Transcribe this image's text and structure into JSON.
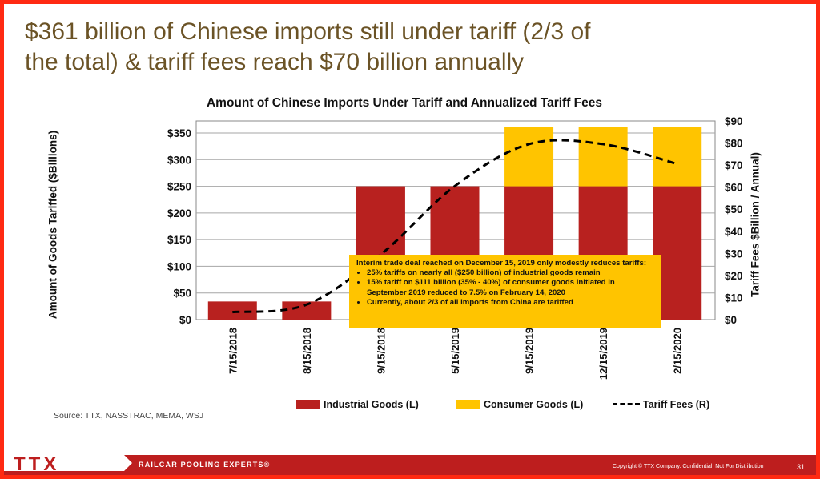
{
  "slide_title": "$361 billion of Chinese imports still under tariff (2/3 of\nthe total) & tariff fees reach $70 billion annually",
  "chart_data": {
    "type": "bar",
    "title": "Amount of Chinese Imports Under Tariff and Annualized Tariff Fees",
    "categories": [
      "7/15/2018",
      "8/15/2018",
      "9/15/2018",
      "5/15/2019",
      "9/15/2019",
      "12/15/2019",
      "2/15/2020"
    ],
    "stacked": true,
    "series": [
      {
        "name": "Industrial Goods (L)",
        "axis": "left",
        "type": "bar",
        "color": "#b8211f",
        "values": [
          34,
          34,
          250,
          250,
          250,
          250,
          250
        ]
      },
      {
        "name": "Consumer Goods (L)",
        "axis": "left",
        "type": "bar",
        "color": "#ffc400",
        "values": [
          0,
          0,
          0,
          0,
          111,
          111,
          111
        ]
      },
      {
        "name": "Tariff Fees (R)",
        "axis": "right",
        "type": "line",
        "style": "dashed",
        "color": "#000000",
        "values": [
          3.4,
          6.8,
          29.5,
          60.5,
          79.5,
          79.5,
          70.5
        ]
      }
    ],
    "y_left": {
      "label": "Amount of Goods Tariffed ($Billions)",
      "ylim": [
        0,
        350
      ],
      "ticks": [
        "$0",
        "$50",
        "$100",
        "$150",
        "$200",
        "$250",
        "$300",
        "$350"
      ]
    },
    "y_right": {
      "label": "Tariff Fees $Billion / Annual)",
      "ylim": [
        0,
        90
      ],
      "ticks": [
        "$0",
        "$10",
        "$20",
        "$30",
        "$40",
        "$50",
        "$60",
        "$70",
        "$80",
        "$90"
      ]
    },
    "grid": true,
    "legend_position": "bottom"
  },
  "annotation": {
    "intro": "Interim trade deal reached on December 15, 2019 only modestly reduces tariffs:",
    "bullets": [
      "25% tariffs on nearly all ($250 billion) of industrial goods remain",
      "15% tariff on $111 billion (35% - 40%) of consumer goods initiated in September 2019 reduced to 7.5% on February 14, 2020",
      "Currently, about 2/3 of all imports from China are tariffed"
    ]
  },
  "source": "Source: TTX, NASSTRAC, MEMA, WSJ",
  "footer": {
    "logo_text": "TTX",
    "tagline": "RAILCAR POOLING EXPERTS",
    "tagline_mark": "®",
    "copyright": "Copyright © TTX Company. Confidential: Not For Distribution",
    "page_number": "31"
  },
  "colors": {
    "frame": "#ff2a12",
    "title": "#6b5326",
    "footer": "#bd1e1e"
  }
}
